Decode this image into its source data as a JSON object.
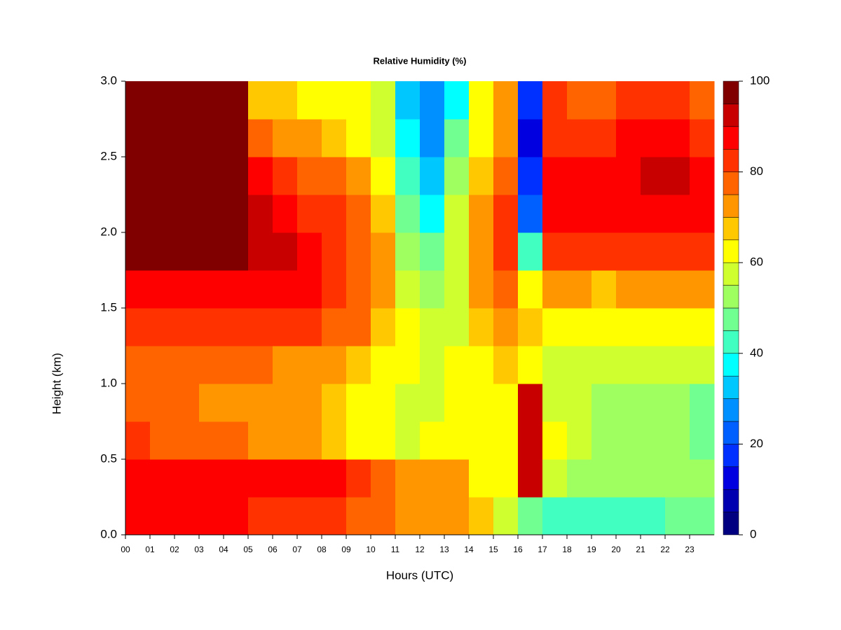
{
  "chart_data": {
    "type": "heatmap",
    "title": "Relative Humidity (%)",
    "xlabel": "Hours (UTC)",
    "ylabel": "Height (km)",
    "xlim": [
      0,
      24
    ],
    "ylim": [
      0,
      3
    ],
    "xticks": [
      {
        "value": 0,
        "label": "00"
      },
      {
        "value": 1,
        "label": "01"
      },
      {
        "value": 2,
        "label": "02"
      },
      {
        "value": 3,
        "label": "03"
      },
      {
        "value": 4,
        "label": "04"
      },
      {
        "value": 5,
        "label": "05"
      },
      {
        "value": 6,
        "label": "06"
      },
      {
        "value": 7,
        "label": "07"
      },
      {
        "value": 8,
        "label": "08"
      },
      {
        "value": 9,
        "label": "09"
      },
      {
        "value": 10,
        "label": "10"
      },
      {
        "value": 11,
        "label": "11"
      },
      {
        "value": 12,
        "label": "12"
      },
      {
        "value": 13,
        "label": "13"
      },
      {
        "value": 14,
        "label": "14"
      },
      {
        "value": 15,
        "label": "15"
      },
      {
        "value": 16,
        "label": "16"
      },
      {
        "value": 17,
        "label": "17"
      },
      {
        "value": 18,
        "label": "18"
      },
      {
        "value": 19,
        "label": "19"
      },
      {
        "value": 20,
        "label": "20"
      },
      {
        "value": 21,
        "label": "21"
      },
      {
        "value": 22,
        "label": "22"
      },
      {
        "value": 23,
        "label": "23"
      }
    ],
    "yticks": [
      {
        "value": 0,
        "label": "0.0"
      },
      0.5,
      {
        "value": 1,
        "label": "1.0"
      },
      1.5,
      {
        "value": 2,
        "label": "2.0"
      },
      2.5,
      {
        "value": 3,
        "label": "3.0"
      }
    ],
    "y_edges": [
      0,
      0.25,
      0.5,
      0.75,
      1,
      1.25,
      1.5,
      1.75,
      2,
      2.25,
      2.5,
      2.75,
      3
    ],
    "z": [
      [
        85,
        88,
        80,
        78,
        77,
        80,
        85,
        97,
        97,
        97,
        97,
        97
      ],
      [
        85,
        88,
        78,
        75,
        76,
        82,
        87,
        97,
        97,
        97,
        97,
        97
      ],
      [
        85,
        88,
        78,
        75,
        77,
        82,
        87,
        97,
        97,
        97,
        97,
        97
      ],
      [
        85,
        88,
        77,
        74,
        76,
        82,
        88,
        97,
        97,
        97,
        97,
        97
      ],
      [
        85,
        87,
        75,
        73,
        76,
        83,
        88,
        95,
        97,
        97,
        97,
        95
      ],
      [
        83,
        86,
        73,
        72,
        75,
        82,
        87,
        92,
        92,
        88,
        78,
        68
      ],
      [
        83,
        86,
        72,
        70,
        74,
        83,
        88,
        90,
        88,
        82,
        72,
        65
      ],
      [
        80,
        85,
        70,
        70,
        73,
        80,
        85,
        85,
        83,
        78,
        70,
        63
      ],
      [
        80,
        85,
        68,
        67,
        70,
        78,
        82,
        82,
        80,
        75,
        66,
        62
      ],
      [
        78,
        82,
        63,
        62,
        68,
        75,
        78,
        78,
        76,
        70,
        63,
        60
      ],
      [
        75,
        78,
        60,
        60,
        63,
        68,
        72,
        72,
        68,
        63,
        58,
        55
      ],
      [
        72,
        72,
        58,
        57,
        60,
        60,
        58,
        52,
        45,
        40,
        35,
        30
      ],
      [
        70,
        70,
        60,
        58,
        58,
        55,
        52,
        45,
        38,
        33,
        28,
        25
      ],
      [
        72,
        70,
        62,
        60,
        60,
        58,
        58,
        58,
        55,
        50,
        45,
        38
      ],
      [
        65,
        60,
        63,
        62,
        63,
        65,
        70,
        73,
        72,
        65,
        62,
        60
      ],
      [
        55,
        60,
        62,
        63,
        65,
        70,
        75,
        80,
        80,
        75,
        72,
        70
      ],
      [
        45,
        90,
        92,
        90,
        60,
        65,
        60,
        40,
        20,
        15,
        12,
        15
      ],
      [
        42,
        55,
        60,
        58,
        58,
        62,
        70,
        80,
        87,
        85,
        82,
        80
      ],
      [
        40,
        50,
        55,
        55,
        58,
        62,
        70,
        80,
        87,
        85,
        82,
        78
      ],
      [
        42,
        50,
        52,
        52,
        55,
        60,
        68,
        80,
        87,
        85,
        82,
        78
      ],
      [
        42,
        50,
        52,
        50,
        55,
        62,
        70,
        82,
        88,
        88,
        85,
        80
      ],
      [
        42,
        50,
        50,
        50,
        55,
        62,
        70,
        83,
        88,
        90,
        85,
        80
      ],
      [
        45,
        50,
        50,
        50,
        55,
        62,
        72,
        83,
        88,
        90,
        85,
        80
      ],
      [
        45,
        50,
        48,
        48,
        55,
        62,
        70,
        80,
        87,
        87,
        83,
        78
      ]
    ],
    "colorbar": {
      "levels": [
        0,
        5,
        10,
        15,
        20,
        25,
        30,
        35,
        40,
        45,
        50,
        55,
        60,
        65,
        70,
        75,
        80,
        85,
        90,
        95,
        100
      ],
      "colors": [
        "#000080",
        "#0000b0",
        "#0000e0",
        "#0030ff",
        "#0060ff",
        "#0090ff",
        "#00c8ff",
        "#00ffff",
        "#40ffc0",
        "#70ff90",
        "#a0ff60",
        "#d0ff30",
        "#ffff00",
        "#ffc800",
        "#ff9600",
        "#ff6400",
        "#ff3200",
        "#ff0000",
        "#c80000",
        "#800000"
      ],
      "ticks": [
        0,
        20,
        40,
        60,
        80,
        100
      ]
    }
  }
}
